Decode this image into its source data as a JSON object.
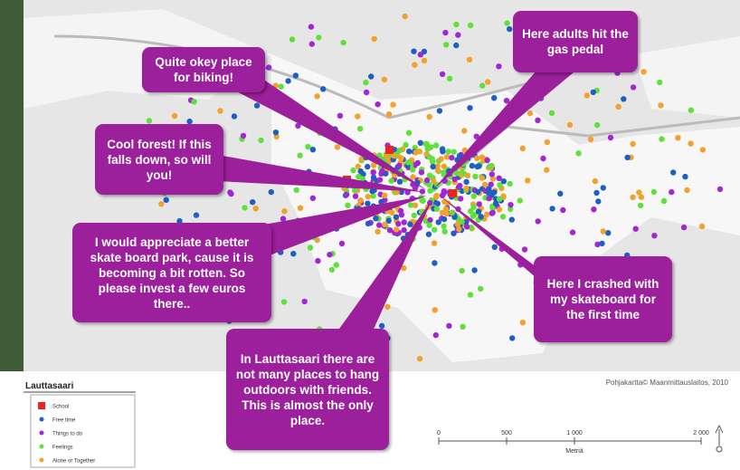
{
  "callouts": [
    {
      "text": "Quite okey place for biking!"
    },
    {
      "text": "Here adults hit the gas pedal"
    },
    {
      "text": "Cool forest! If this falls down, so will you!"
    },
    {
      "text": "I would appreciate a better skate board park, cause it is becoming a bit rotten. So please  invest a few euros there.."
    },
    {
      "text": "Here I crashed with my skateboard for the first time"
    },
    {
      "text": "In Lauttasaari there are not many places to hang outdoors with friends.  This is almost the only place."
    }
  ],
  "map_credit": "Pohjakartta© Maanmittauslaitos, 2010",
  "legend": {
    "title": "Lauttasaari",
    "items": [
      {
        "label": "School",
        "color": "#e8251f",
        "shape": "square"
      },
      {
        "label": "Free time",
        "color": "#1f5fc4",
        "shape": "dot"
      },
      {
        "label": "Things to do",
        "color": "#a326d6",
        "shape": "dot"
      },
      {
        "label": "Feelings",
        "color": "#5fe03a",
        "shape": "dot"
      },
      {
        "label": "Alone or Together",
        "color": "#f2a12c",
        "shape": "dot"
      }
    ]
  },
  "scale_bar": {
    "labels": [
      "0",
      "500",
      "1 000",
      "2 000"
    ],
    "unit": "Metriä"
  }
}
